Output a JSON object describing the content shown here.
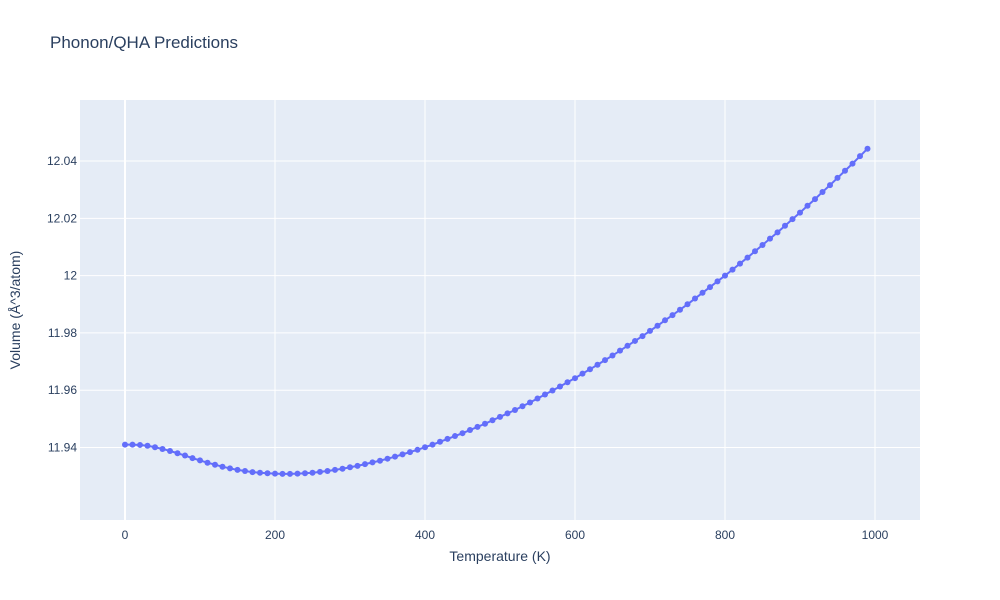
{
  "chart_data": {
    "type": "scatter",
    "mode": "lines+markers",
    "title": "Phonon/QHA Predictions",
    "xlabel": "Temperature (K)",
    "ylabel": "Volume (Å^3/atom)",
    "xlim": [
      -60,
      1060
    ],
    "ylim": [
      11.9147,
      12.0613
    ],
    "xticks": [
      0,
      200,
      400,
      600,
      800,
      1000
    ],
    "xtick_labels": [
      "0",
      "200",
      "400",
      "600",
      "800",
      "1000"
    ],
    "yticks": [
      11.94,
      11.96,
      11.98,
      12.0,
      12.02,
      12.04
    ],
    "ytick_labels": [
      "11.94",
      "11.96",
      "11.98",
      "12",
      "12.02",
      "12.04"
    ],
    "grid": true,
    "background": "#e5ecf6",
    "series_color": "#636efa",
    "series": [
      {
        "x": [
          0,
          10,
          20,
          30,
          40,
          50,
          60,
          70,
          80,
          90,
          100,
          110,
          120,
          130,
          140,
          150,
          160,
          170,
          180,
          190,
          200,
          210,
          220,
          230,
          240,
          250,
          260,
          270,
          280,
          290,
          300,
          310,
          320,
          330,
          340,
          350,
          360,
          370,
          380,
          390,
          400,
          410,
          420,
          430,
          440,
          450,
          460,
          470,
          480,
          490,
          500,
          510,
          520,
          530,
          540,
          550,
          560,
          570,
          580,
          590,
          600,
          610,
          620,
          630,
          640,
          650,
          660,
          670,
          680,
          690,
          700,
          710,
          720,
          730,
          740,
          750,
          760,
          770,
          780,
          790,
          800,
          810,
          820,
          830,
          840,
          850,
          860,
          870,
          880,
          890,
          900,
          910,
          920,
          930,
          940,
          950,
          960,
          970,
          980,
          990
        ],
        "y": [
          11.941,
          11.941,
          11.9409,
          11.9406,
          11.9401,
          11.9395,
          11.9388,
          11.938,
          11.9372,
          11.9363,
          11.9355,
          11.9347,
          11.934,
          11.9333,
          11.9327,
          11.9322,
          11.9318,
          11.9314,
          11.9312,
          11.931,
          11.9309,
          11.9308,
          11.9308,
          11.9309,
          11.931,
          11.9312,
          11.9315,
          11.9318,
          11.9322,
          11.9326,
          11.9331,
          11.9336,
          11.9342,
          11.9348,
          11.9354,
          11.9361,
          11.9368,
          11.9376,
          11.9384,
          11.9392,
          11.9401,
          11.941,
          11.942,
          11.943,
          11.944,
          11.945,
          11.9461,
          11.9472,
          11.9483,
          11.9495,
          11.9507,
          11.9519,
          11.9531,
          11.9544,
          11.9557,
          11.9571,
          11.9585,
          11.9599,
          11.9613,
          11.9628,
          11.9642,
          11.9658,
          11.9673,
          11.9689,
          11.9705,
          11.9721,
          11.9738,
          11.9755,
          11.9772,
          11.9789,
          11.9807,
          11.9825,
          11.9844,
          11.9862,
          11.9881,
          11.99,
          11.992,
          11.994,
          11.996,
          11.998,
          12.0,
          12.0021,
          12.0042,
          12.0063,
          12.0085,
          12.0107,
          12.0129,
          12.0151,
          12.0174,
          12.0197,
          12.022,
          12.0244,
          12.0267,
          12.0292,
          12.0316,
          12.0341,
          12.0366,
          12.0391,
          12.0417,
          12.0443
        ]
      }
    ]
  }
}
